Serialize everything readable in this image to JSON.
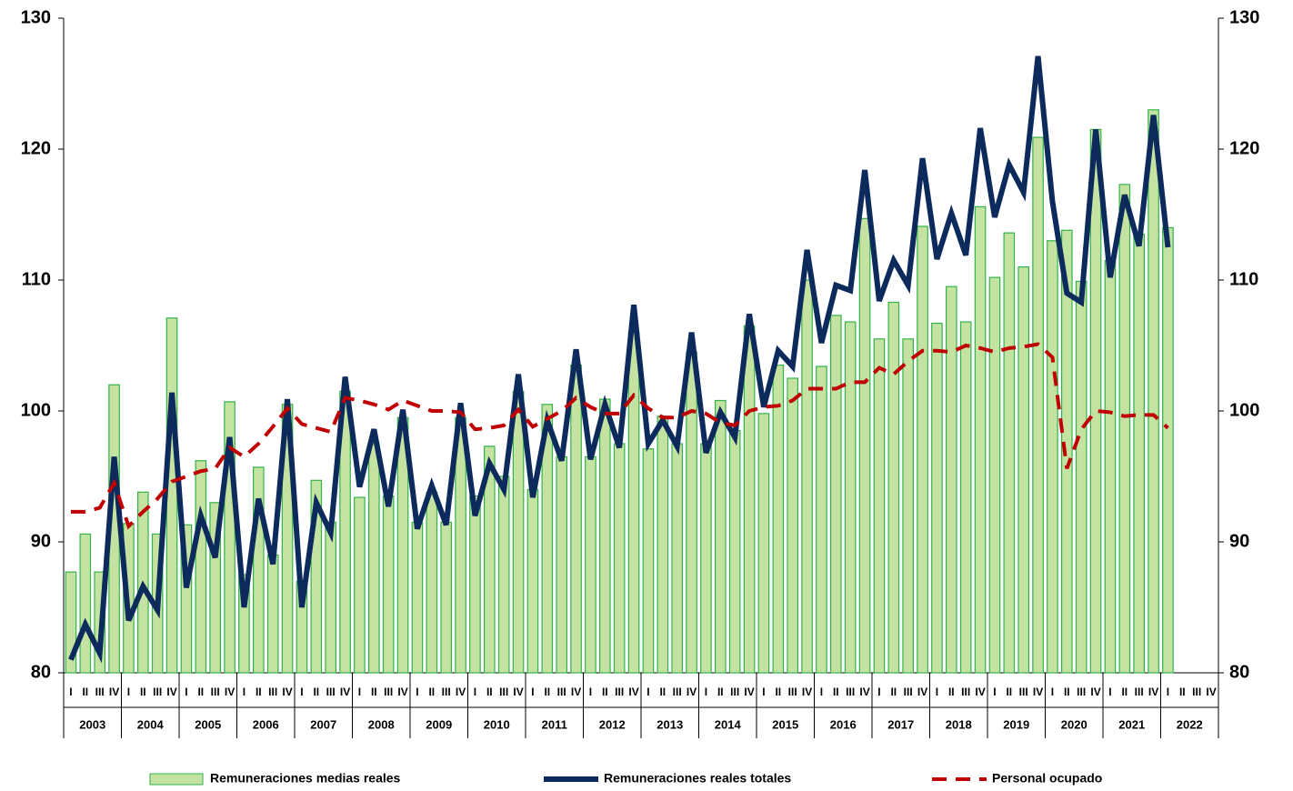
{
  "chart_data": {
    "type": "bar_line",
    "categories": [
      "I",
      "II",
      "III",
      "IV",
      "I",
      "II",
      "III",
      "IV",
      "I",
      "II",
      "III",
      "IV",
      "I",
      "II",
      "III",
      "IV",
      "I",
      "II",
      "III",
      "IV",
      "I",
      "II",
      "III",
      "IV",
      "I",
      "II",
      "III",
      "IV",
      "I",
      "II",
      "III",
      "IV",
      "I",
      "II",
      "III",
      "IV",
      "I",
      "II",
      "III",
      "IV",
      "I",
      "II",
      "III",
      "IV",
      "I",
      "II",
      "III",
      "IV",
      "I",
      "II",
      "III",
      "IV",
      "I",
      "II",
      "III",
      "IV",
      "I",
      "II",
      "III",
      "IV",
      "I",
      "II",
      "III",
      "IV",
      "I",
      "II",
      "III",
      "IV",
      "I",
      "II",
      "III",
      "IV",
      "I",
      "II",
      "III",
      "IV",
      "I",
      "II",
      "III",
      "IV"
    ],
    "year_groups": [
      "2003",
      "2004",
      "2005",
      "2006",
      "2007",
      "2008",
      "2009",
      "2010",
      "2011",
      "2012",
      "2013",
      "2014",
      "2015",
      "2016",
      "2017",
      "2018",
      "2019",
      "2020",
      "2021",
      "2022"
    ],
    "ylim": [
      80,
      130
    ],
    "yticks": [
      80,
      90,
      100,
      110,
      120,
      130
    ],
    "y2lim": [
      80,
      130
    ],
    "y2ticks": [
      80,
      90,
      100,
      110,
      120,
      130
    ],
    "series": [
      {
        "name": "Remuneraciones medias reales",
        "kind": "bar",
        "color": "#c4e3a2",
        "edge_color": "#33b34a",
        "values": [
          87.7,
          90.6,
          87.7,
          102.0,
          91.4,
          93.8,
          90.6,
          107.1,
          91.3,
          96.2,
          93.0,
          100.7,
          87.5,
          95.7,
          89.0,
          100.5,
          87.0,
          94.7,
          91.5,
          101.5,
          93.4,
          97.5,
          93.5,
          99.5,
          91.5,
          93.8,
          91.5,
          99.5,
          93.5,
          97.3,
          95.0,
          101.5,
          94.0,
          100.5,
          96.5,
          103.5,
          96.5,
          100.9,
          97.5,
          106.0,
          97.1,
          99.6,
          97.5,
          104.5,
          97.5,
          100.8,
          98.5,
          106.5,
          99.8,
          103.5,
          102.5,
          110.0,
          103.4,
          107.3,
          106.8,
          114.7,
          105.5,
          108.3,
          105.5,
          114.1,
          106.7,
          109.5,
          106.8,
          115.6,
          110.2,
          113.6,
          111.0,
          120.9,
          113.0,
          113.8,
          109.9,
          121.5,
          111.5,
          117.3,
          113.5,
          123.0,
          114.0,
          null,
          null,
          null
        ]
      },
      {
        "name": "Remuneraciones reales totales",
        "kind": "line",
        "color": "#0d2a5c",
        "values": [
          81.0,
          83.7,
          81.5,
          96.5,
          84.0,
          86.6,
          84.8,
          101.4,
          86.5,
          92.0,
          88.8,
          98.0,
          85.0,
          93.3,
          88.3,
          100.9,
          85.0,
          93.0,
          90.7,
          102.6,
          94.2,
          98.6,
          92.7,
          100.1,
          91.0,
          94.3,
          91.3,
          100.6,
          92.0,
          96.0,
          94.0,
          102.8,
          93.4,
          99.3,
          96.2,
          104.7,
          96.3,
          100.5,
          97.2,
          108.1,
          97.5,
          99.3,
          97.3,
          106.0,
          96.8,
          99.9,
          98.0,
          107.4,
          100.3,
          104.6,
          103.4,
          112.3,
          105.2,
          109.6,
          109.2,
          118.4,
          108.4,
          111.5,
          109.6,
          119.3,
          111.6,
          115.1,
          111.9,
          121.6,
          114.8,
          118.8,
          116.7,
          127.1,
          116.0,
          109.0,
          108.3,
          121.5,
          110.2,
          116.5,
          112.6,
          122.6,
          112.5,
          null,
          null,
          null
        ]
      },
      {
        "name": "Personal ocupado",
        "kind": "dashed",
        "color": "#c00000",
        "values": [
          92.3,
          92.3,
          92.6,
          94.5,
          91.2,
          92.3,
          93.3,
          94.6,
          95.0,
          95.4,
          95.6,
          97.2,
          96.5,
          97.5,
          98.8,
          100.2,
          99.0,
          98.7,
          98.4,
          101.0,
          100.8,
          100.5,
          100.1,
          100.8,
          100.4,
          100.0,
          100.0,
          99.9,
          98.6,
          98.7,
          98.9,
          100.1,
          98.8,
          99.4,
          100.0,
          101.0,
          100.3,
          99.8,
          99.8,
          101.2,
          100.2,
          99.5,
          99.5,
          100.0,
          99.8,
          99.1,
          98.9,
          100.0,
          100.3,
          100.4,
          100.8,
          101.7,
          101.7,
          101.7,
          102.2,
          102.2,
          103.3,
          102.8,
          103.8,
          104.6,
          104.6,
          104.5,
          105.0,
          104.8,
          104.5,
          104.8,
          104.9,
          105.1,
          104.1,
          95.6,
          98.6,
          100.0,
          99.9,
          99.6,
          99.7,
          99.7,
          98.7,
          null,
          null,
          null
        ]
      }
    ]
  }
}
